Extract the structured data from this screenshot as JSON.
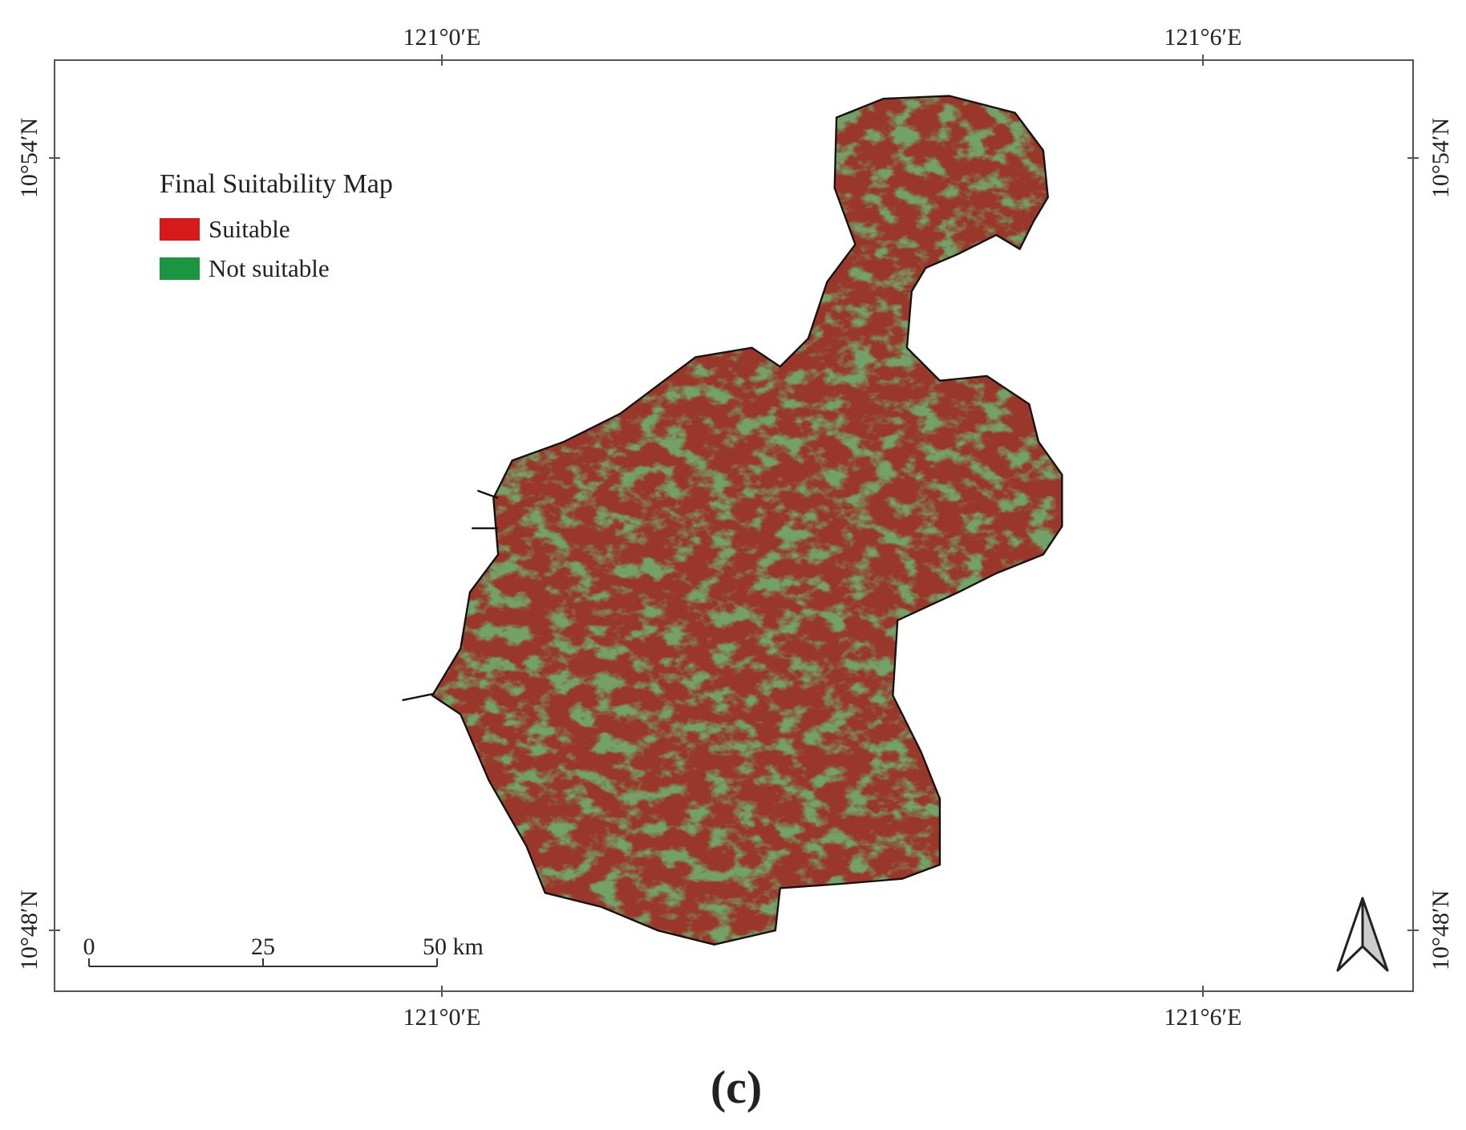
{
  "legend": {
    "title": "Final Suitability Map",
    "items": [
      {
        "label": "Suitable",
        "color": "#d7191c"
      },
      {
        "label": "Not suitable",
        "color": "#1a9641"
      }
    ]
  },
  "longitude_labels": [
    "121°0′E",
    "121°6′E"
  ],
  "latitude_labels": [
    "10°54′N",
    "10°48′N"
  ],
  "scale_bar": {
    "labels": [
      "0",
      "25",
      "50 km"
    ]
  },
  "caption": "(c)"
}
